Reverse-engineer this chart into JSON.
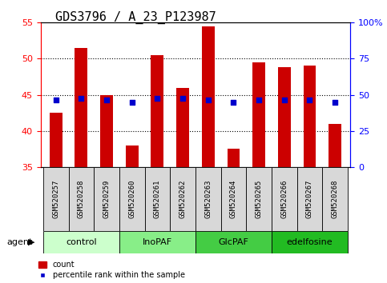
{
  "title": "GDS3796 / A_23_P123987",
  "samples": [
    "GSM520257",
    "GSM520258",
    "GSM520259",
    "GSM520260",
    "GSM520261",
    "GSM520262",
    "GSM520263",
    "GSM520264",
    "GSM520265",
    "GSM520266",
    "GSM520267",
    "GSM520268"
  ],
  "count_values": [
    42.5,
    51.5,
    45.0,
    38.0,
    50.5,
    46.0,
    54.5,
    37.5,
    49.5,
    48.8,
    49.0,
    41.0
  ],
  "percentile_values": [
    44.3,
    44.5,
    44.3,
    44.0,
    44.5,
    44.5,
    44.3,
    44.0,
    44.3,
    44.3,
    44.3,
    44.0
  ],
  "ylim_left": [
    35,
    55
  ],
  "ylim_right": [
    0,
    100
  ],
  "yticks_left": [
    35,
    40,
    45,
    50,
    55
  ],
  "yticks_right": [
    0,
    25,
    50,
    75,
    100
  ],
  "ytick_labels_right": [
    "0",
    "25",
    "50",
    "75",
    "100%"
  ],
  "groups": [
    {
      "label": "control",
      "indices": [
        0,
        1,
        2
      ],
      "color": "#ccffcc"
    },
    {
      "label": "InoPAF",
      "indices": [
        3,
        4,
        5
      ],
      "color": "#88ee88"
    },
    {
      "label": "GlcPAF",
      "indices": [
        6,
        7,
        8
      ],
      "color": "#44cc44"
    },
    {
      "label": "edelfosine",
      "indices": [
        9,
        10,
        11
      ],
      "color": "#22bb22"
    }
  ],
  "bar_color": "#cc0000",
  "dot_color": "#0000cc",
  "bar_width": 0.5,
  "legend_labels": [
    "count",
    "percentile rank within the sample"
  ],
  "agent_label": "agent",
  "grid_yticks": [
    40,
    45,
    50
  ],
  "title_fontsize": 11,
  "tick_fontsize": 8,
  "sample_fontsize": 6.5,
  "group_fontsize": 8
}
